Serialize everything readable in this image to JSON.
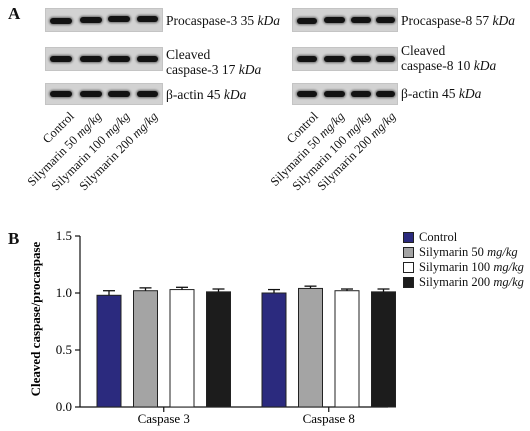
{
  "panel_a": {
    "letter": "A",
    "blots_left": [
      {
        "name": "Procaspase-3",
        "size": "35",
        "unit": "kDa"
      },
      {
        "name": "Cleaved",
        "name_line2": "caspase-3",
        "size": "17",
        "unit": "kDa"
      },
      {
        "name": "β-actin",
        "size": "45",
        "unit": "kDa"
      }
    ],
    "blots_right": [
      {
        "name": "Procaspase-8",
        "size": "57",
        "unit": "kDa"
      },
      {
        "name": "Cleaved",
        "name_line2": "caspase-8",
        "size": "10",
        "unit": "kDa"
      },
      {
        "name": "β-actin",
        "size": "45",
        "unit": "kDa"
      }
    ],
    "lanes": [
      {
        "label": "Control",
        "dose": ""
      },
      {
        "label": "Silymarin 50",
        "dose": "mg/kg"
      },
      {
        "label": "Silymarin 100",
        "dose": "mg/kg"
      },
      {
        "label": "Silymarin 200",
        "dose": "mg/kg"
      }
    ]
  },
  "panel_b": {
    "letter": "B"
  },
  "chart_data": {
    "type": "bar",
    "title": "",
    "ylabel": "Cleaved caspase/procaspase",
    "xlabel": "",
    "ylim": [
      0,
      1.5
    ],
    "yticks": [
      "0.0",
      "0.5",
      "1.0",
      "1.5"
    ],
    "categories": [
      "Caspase 3",
      "Caspase 8"
    ],
    "series": [
      {
        "name": "Control",
        "unit": "",
        "color": "#2b2a7e",
        "values": [
          0.98,
          1.0
        ],
        "errors": [
          0.04,
          0.03
        ]
      },
      {
        "name": "Silymarin 50",
        "unit": "mg/kg",
        "color": "#a4a4a4",
        "values": [
          1.02,
          1.04
        ],
        "errors": [
          0.025,
          0.02
        ]
      },
      {
        "name": "Silymarin 100",
        "unit": "mg/kg",
        "color": "#ffffff",
        "values": [
          1.03,
          1.02
        ],
        "errors": [
          0.02,
          0.015
        ]
      },
      {
        "name": "Silymarin 200",
        "unit": "mg/kg",
        "color": "#1c1c1c",
        "values": [
          1.01,
          1.01
        ],
        "errors": [
          0.025,
          0.025
        ]
      }
    ],
    "legend_position": "top-right",
    "grid": false
  }
}
